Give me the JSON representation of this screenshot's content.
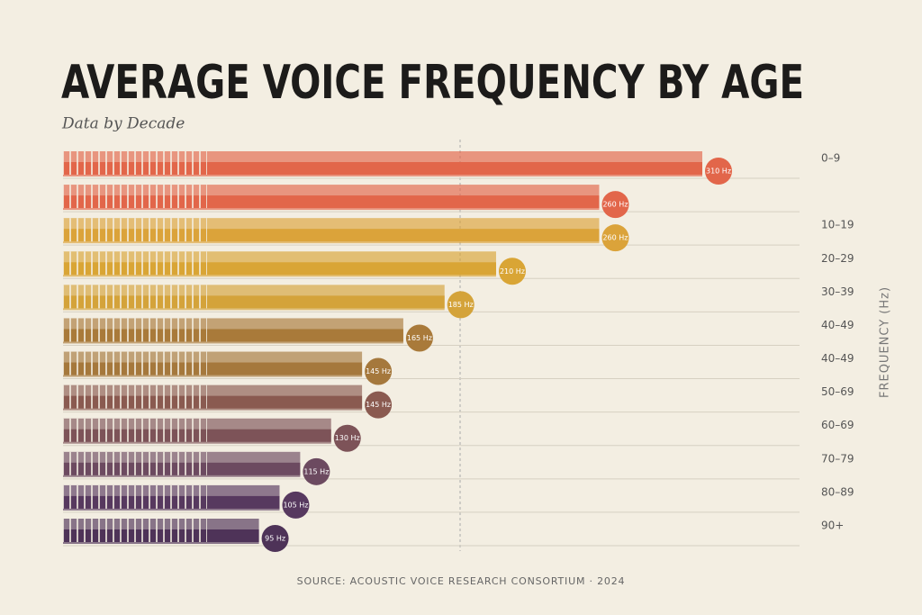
{
  "chart_data": {
    "type": "bar",
    "title": "AVERAGE VOICE FREQUENCY BY AGE",
    "subtitle": "Data by Decade",
    "axis_label": "FREQUENCY (Hz)",
    "source": "SOURCE: ACOUSTIC VOICE RESEARCH CONSORTIUM · 2024",
    "categories": [
      "0–9",
      null,
      "10–19",
      "20–29",
      "30–39",
      "40–49",
      "40–49",
      "50–69",
      "60–69",
      "70–79",
      "80–89",
      "90+"
    ],
    "values": [
      310,
      260,
      260,
      210,
      185,
      165,
      145,
      145,
      130,
      115,
      105,
      95
    ],
    "value_labels": [
      "310 Hz",
      "260 Hz",
      "260 Hz",
      "210 Hz",
      "185 Hz",
      "165 Hz",
      "145 Hz",
      "145 Hz",
      "130 Hz",
      "115 Hz",
      "105 Hz",
      "95 Hz"
    ],
    "colors": [
      "#e2664a",
      "#e2664a",
      "#dba33a",
      "#d9a535",
      "#d4a33a",
      "#a97a3a",
      "#a5783c",
      "#8a5a50",
      "#7d5358",
      "#6c4a60",
      "#57395f",
      "#4e3358"
    ]
  }
}
